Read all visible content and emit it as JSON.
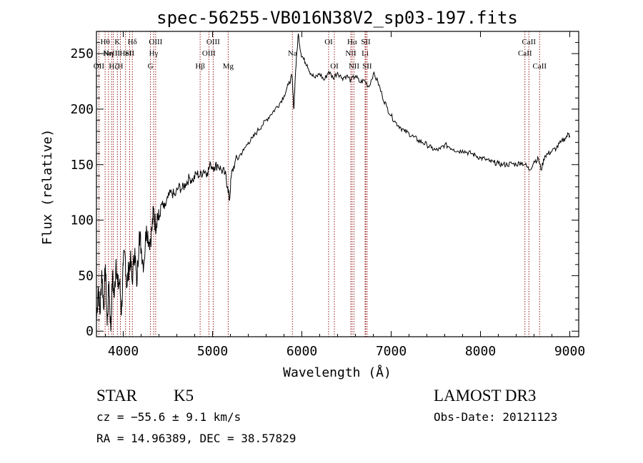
{
  "chart_data": {
    "type": "line",
    "title": "spec-56255-VB016N38V2_sp03-197.fits",
    "xlabel": "Wavelength (Å)",
    "ylabel": "Flux (relative)",
    "xlim": [
      3700,
      9100
    ],
    "ylim": [
      -5,
      270
    ],
    "xticks": [
      4000,
      5000,
      6000,
      7000,
      8000,
      9000
    ],
    "yticks": [
      0,
      50,
      100,
      150,
      200,
      250
    ],
    "grid": false,
    "line_color": "#000000",
    "marker_color": "#8b0000",
    "series": [
      {
        "points": [
          [
            3700,
            10
          ],
          [
            3720,
            40
          ],
          [
            3740,
            15
          ],
          [
            3760,
            55
          ],
          [
            3780,
            20
          ],
          [
            3800,
            60
          ],
          [
            3820,
            5
          ],
          [
            3840,
            45
          ],
          [
            3860,
            0
          ],
          [
            3880,
            50
          ],
          [
            3900,
            30
          ],
          [
            3920,
            65
          ],
          [
            3940,
            40
          ],
          [
            3960,
            45
          ],
          [
            3980,
            15
          ],
          [
            4000,
            60
          ],
          [
            4020,
            70
          ],
          [
            4040,
            40
          ],
          [
            4060,
            55
          ],
          [
            4080,
            65
          ],
          [
            4100,
            45
          ],
          [
            4130,
            75
          ],
          [
            4150,
            40
          ],
          [
            4180,
            90
          ],
          [
            4200,
            75
          ],
          [
            4230,
            60
          ],
          [
            4260,
            95
          ],
          [
            4290,
            80
          ],
          [
            4320,
            90
          ],
          [
            4340,
            110
          ],
          [
            4360,
            95
          ],
          [
            4380,
            105
          ],
          [
            4400,
            100
          ],
          [
            4430,
            115
          ],
          [
            4460,
            110
          ],
          [
            4500,
            120
          ],
          [
            4540,
            125
          ],
          [
            4580,
            122
          ],
          [
            4620,
            130
          ],
          [
            4660,
            128
          ],
          [
            4700,
            133
          ],
          [
            4740,
            138
          ],
          [
            4780,
            136
          ],
          [
            4820,
            142
          ],
          [
            4860,
            140
          ],
          [
            4900,
            145
          ],
          [
            4940,
            143
          ],
          [
            4980,
            150
          ],
          [
            5020,
            148
          ],
          [
            5060,
            150
          ],
          [
            5100,
            145
          ],
          [
            5140,
            142
          ],
          [
            5170,
            130
          ],
          [
            5190,
            118
          ],
          [
            5210,
            140
          ],
          [
            5250,
            152
          ],
          [
            5300,
            158
          ],
          [
            5350,
            163
          ],
          [
            5400,
            170
          ],
          [
            5450,
            174
          ],
          [
            5500,
            180
          ],
          [
            5550,
            185
          ],
          [
            5600,
            190
          ],
          [
            5650,
            195
          ],
          [
            5700,
            200
          ],
          [
            5750,
            205
          ],
          [
            5800,
            212
          ],
          [
            5850,
            222
          ],
          [
            5890,
            230
          ],
          [
            5910,
            200
          ],
          [
            5930,
            235
          ],
          [
            5960,
            268
          ],
          [
            5990,
            250
          ],
          [
            6020,
            245
          ],
          [
            6060,
            240
          ],
          [
            6100,
            232
          ],
          [
            6150,
            228
          ],
          [
            6200,
            232
          ],
          [
            6250,
            226
          ],
          [
            6300,
            234
          ],
          [
            6350,
            228
          ],
          [
            6400,
            233
          ],
          [
            6450,
            228
          ],
          [
            6500,
            230
          ],
          [
            6550,
            226
          ],
          [
            6600,
            230
          ],
          [
            6650,
            224
          ],
          [
            6700,
            226
          ],
          [
            6750,
            220
          ],
          [
            6800,
            232
          ],
          [
            6850,
            225
          ],
          [
            6900,
            212
          ],
          [
            6950,
            202
          ],
          [
            7000,
            194
          ],
          [
            7050,
            188
          ],
          [
            7100,
            184
          ],
          [
            7150,
            180
          ],
          [
            7200,
            178
          ],
          [
            7250,
            175
          ],
          [
            7300,
            172
          ],
          [
            7350,
            170
          ],
          [
            7400,
            168
          ],
          [
            7450,
            165
          ],
          [
            7500,
            163
          ],
          [
            7550,
            164
          ],
          [
            7600,
            168
          ],
          [
            7650,
            166
          ],
          [
            7700,
            164
          ],
          [
            7750,
            162
          ],
          [
            7800,
            163
          ],
          [
            7850,
            161
          ],
          [
            7900,
            160
          ],
          [
            7950,
            158
          ],
          [
            8000,
            156
          ],
          [
            8050,
            155
          ],
          [
            8100,
            153
          ],
          [
            8150,
            152
          ],
          [
            8200,
            151
          ],
          [
            8250,
            150
          ],
          [
            8300,
            150
          ],
          [
            8350,
            151
          ],
          [
            8400,
            150
          ],
          [
            8450,
            152
          ],
          [
            8500,
            150
          ],
          [
            8550,
            145
          ],
          [
            8600,
            153
          ],
          [
            8650,
            155
          ],
          [
            8680,
            145
          ],
          [
            8720,
            158
          ],
          [
            8760,
            160
          ],
          [
            8800,
            162
          ],
          [
            8850,
            165
          ],
          [
            8900,
            170
          ],
          [
            8950,
            174
          ],
          [
            8990,
            178
          ],
          [
            9000,
            175
          ]
        ]
      }
    ],
    "line_markers": [
      {
        "x": 3727,
        "label": "OII",
        "row": 3
      },
      {
        "x": 3797,
        "label": "Hθ",
        "row": 1
      },
      {
        "x": 3835,
        "label": "Hη",
        "row": 2
      },
      {
        "x": 3869,
        "label": "NeIII",
        "row": 2
      },
      {
        "x": 3889,
        "label": "Hζ",
        "row": 3
      },
      {
        "x": 3934,
        "label": "K",
        "row": 1
      },
      {
        "x": 3968,
        "label": "H",
        "row": 3
      },
      {
        "x": 4026,
        "label": "HeI",
        "row": 2
      },
      {
        "x": 4072,
        "label": "SII",
        "row": 2
      },
      {
        "x": 4102,
        "label": "Hδ",
        "row": 1
      },
      {
        "x": 4305,
        "label": "G",
        "row": 3
      },
      {
        "x": 4340,
        "label": "Hγ",
        "row": 2
      },
      {
        "x": 4363,
        "label": "OIII",
        "row": 1
      },
      {
        "x": 4861,
        "label": "Hβ",
        "row": 3
      },
      {
        "x": 4959,
        "label": "OIII",
        "row": 2
      },
      {
        "x": 5007,
        "label": "OIII",
        "row": 1
      },
      {
        "x": 5175,
        "label": "Mg",
        "row": 3
      },
      {
        "x": 5894,
        "label": "Na",
        "row": 2
      },
      {
        "x": 6300,
        "label": "OI",
        "row": 1
      },
      {
        "x": 6364,
        "label": "OI",
        "row": 3
      },
      {
        "x": 6548,
        "label": "NII",
        "row": 2
      },
      {
        "x": 6563,
        "label": "Hα",
        "row": 1
      },
      {
        "x": 6583,
        "label": "NII",
        "row": 3
      },
      {
        "x": 6708,
        "label": "Li",
        "row": 2
      },
      {
        "x": 6716,
        "label": "SII",
        "row": 1
      },
      {
        "x": 6731,
        "label": "SII",
        "row": 3
      },
      {
        "x": 8498,
        "label": "CaII",
        "row": 2
      },
      {
        "x": 8542,
        "label": "CaII",
        "row": 1
      },
      {
        "x": 8662,
        "label": "CaII",
        "row": 3
      }
    ]
  },
  "info": {
    "object_class": "STAR",
    "subclass": "K5",
    "survey": "LAMOST DR3",
    "cz": "cz = −55.6 ± 9.1 km/s",
    "obs_date": "Obs-Date: 20121123",
    "coords": "RA =  14.96389, DEC =  38.57829"
  }
}
